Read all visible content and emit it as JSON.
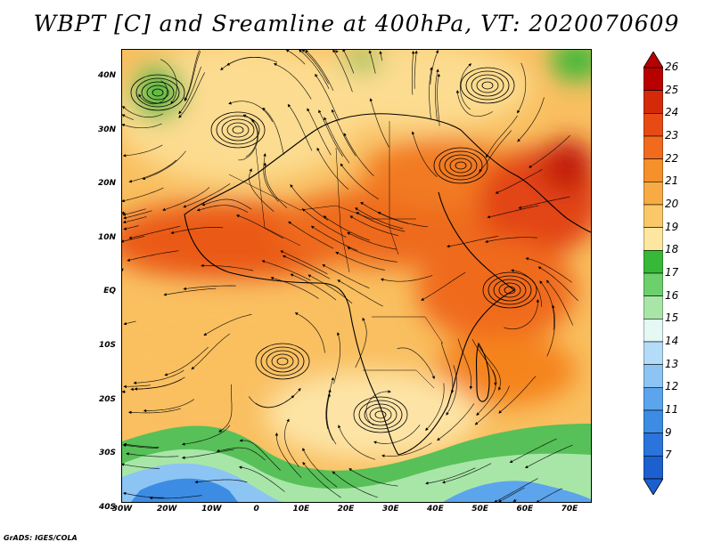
{
  "title": "WBPT [C] and Sreamline at 400hPa, VT: 2020070609",
  "footer": "GrADS: IGES/COLA",
  "map": {
    "lat_labels": [
      "40N",
      "30N",
      "20N",
      "10N",
      "EQ",
      "10S",
      "20S",
      "30S",
      "40S"
    ],
    "lon_labels": [
      "30W",
      "20W",
      "10W",
      "0",
      "10E",
      "20E",
      "30E",
      "40E",
      "50E",
      "60E",
      "70E"
    ],
    "lon_range": [
      -30,
      75
    ],
    "lat_range": [
      -40,
      45
    ]
  },
  "colorbar": {
    "labels": [
      "26",
      "25",
      "24",
      "23",
      "22",
      "21",
      "20",
      "19",
      "18",
      "17",
      "16",
      "15",
      "14",
      "13",
      "12",
      "11",
      "9",
      "7"
    ],
    "colors": [
      "#b80000",
      "#d42a0a",
      "#e84a14",
      "#f26a1e",
      "#f6902a",
      "#f8aa44",
      "#fac868",
      "#fce6a0",
      "#38b838",
      "#6cd06c",
      "#a8e6a8",
      "#e4f8f4",
      "#b4dcf8",
      "#8cc4f4",
      "#5ca4ec",
      "#3c8ce4",
      "#2a74dc",
      "#1c60d0"
    ]
  }
}
